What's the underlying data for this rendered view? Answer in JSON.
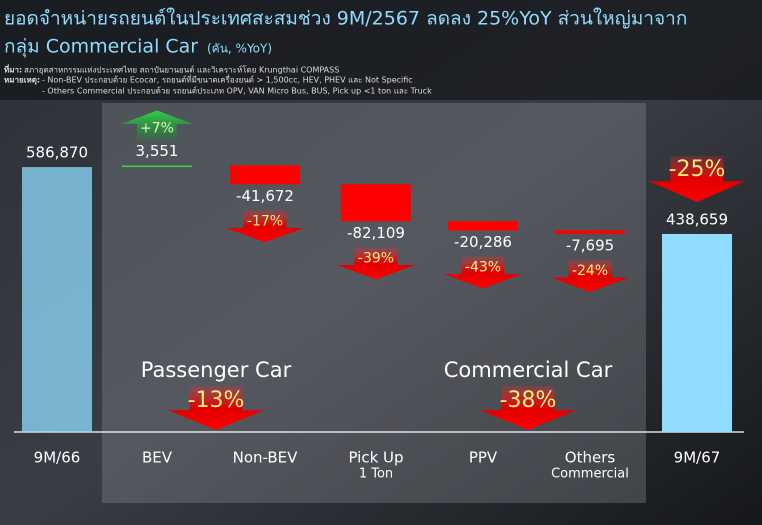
{
  "chart_data": {
    "type": "waterfall",
    "title": "ยอดจำหน่ายรถยนต์ในประเทศสะสมช่วง 9M/2567 ลดลง 25%YoY ส่วนใหญ่มาจาก",
    "title_line2": "กลุ่ม Commercial Car",
    "subtitle": "(คัน, %YoY)",
    "source_label": "ที่มา:",
    "source": "สภาอุตสาหกรรมแห่งประเทศไทย สถาบันยานยนต์ และวิเคราะห์โดย Krungthai COMPASS",
    "note_label": "หมายเหตุ:",
    "notes": [
      "- Non-BEV ประกอบด้วย Ecocar, รถยนต์ที่มีขนาดเครื่องยนต์ > 1,500cc, HEV, PHEV และ Not Specific",
      "- Others Commercial ประกอบด้วย รถยนต์ประเภท OPV, VAN Micro Bus, BUS, Pick up <1 ton และ Truck"
    ],
    "categories": [
      [
        "9M/66"
      ],
      [
        "BEV"
      ],
      [
        "Non-BEV"
      ],
      [
        "Pick Up",
        "1 Ton"
      ],
      [
        "PPV"
      ],
      [
        "Others",
        "Commercial"
      ],
      [
        "9M/67"
      ]
    ],
    "values": [
      586870,
      3551,
      -41672,
      -82109,
      -20286,
      -7695,
      438659
    ],
    "value_labels": [
      "586,870",
      "3,551",
      "-41,672",
      "-82,109",
      "-20,286",
      "-7,695",
      "438,659"
    ],
    "is_total": [
      true,
      false,
      false,
      false,
      false,
      false,
      true
    ],
    "changes": [
      null,
      7,
      -17,
      -39,
      -43,
      -24,
      -25
    ],
    "change_labels": [
      null,
      "+7%",
      "-17%",
      "-39%",
      "-43%",
      "-24%",
      "-25%"
    ],
    "groups": [
      {
        "name": "Passenger Car",
        "change": -13,
        "change_label": "-13%"
      },
      {
        "name": "Commercial Car",
        "change": -38,
        "change_label": "-38%"
      }
    ],
    "ylim": [
      0,
      700000
    ],
    "total_color": "#8fdcff",
    "increase_color": "#2fd44a",
    "decrease_color": "#ff0000"
  }
}
